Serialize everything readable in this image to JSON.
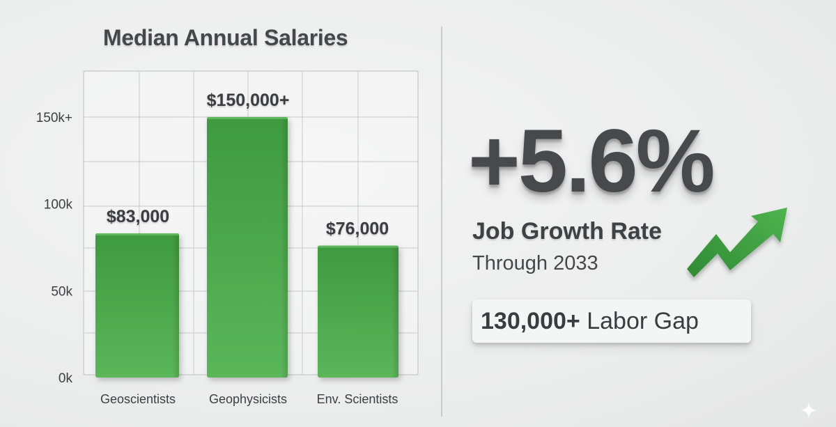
{
  "chart_data": {
    "type": "bar",
    "title": "Median Annual Salaries",
    "categories": [
      "Geoscientists",
      "Geophysicists",
      "Env. Scientists"
    ],
    "values": [
      83000,
      150000,
      76000
    ],
    "data_labels": [
      "$83,000",
      "$150,000+",
      "$76,000"
    ],
    "y_ticks": [
      0,
      50000,
      100000,
      150000
    ],
    "y_tick_labels": [
      "0k",
      "50k",
      "100k",
      "150k+"
    ],
    "ylim": [
      0,
      150000
    ],
    "grid": true,
    "colors": {
      "bar": "#3f9a3f",
      "bar_light": "#5bb65a",
      "grid": "#cfd1d2"
    }
  },
  "stats": {
    "growth_value": "+5.6%",
    "growth_label": "Job Growth Rate",
    "growth_period": "Through 2033",
    "labor_gap_number": "130,000+",
    "labor_gap_text": "Labor Gap",
    "arrow_icon": "trend-up-arrow-icon",
    "arrow_color": "#3f9a3f"
  }
}
